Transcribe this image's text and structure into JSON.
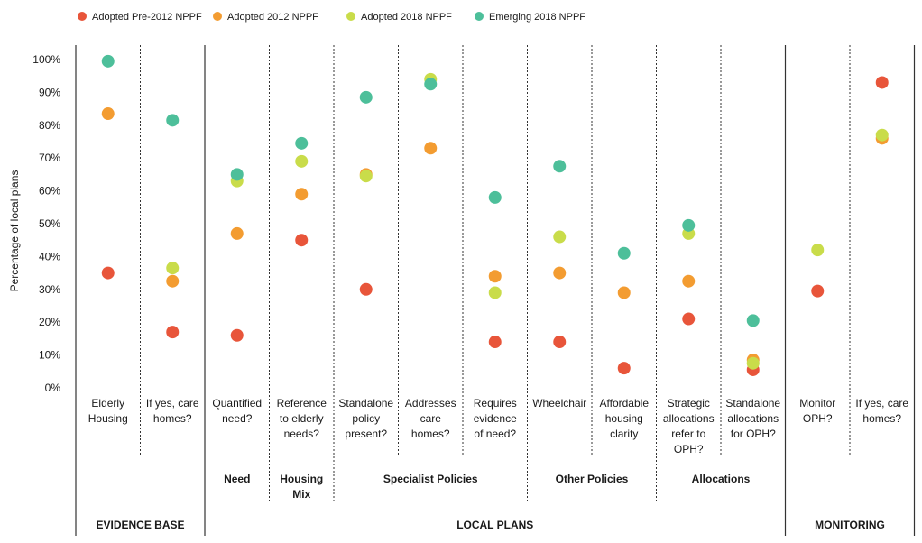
{
  "chart_data": {
    "type": "scatter",
    "title": "",
    "ylabel": "Percentage of local plans",
    "ylim": [
      0,
      100
    ],
    "yticks": [
      "0%",
      "10%",
      "20%",
      "30%",
      "40%",
      "50%",
      "60%",
      "70%",
      "80%",
      "90%",
      "100%"
    ],
    "legend_position": "top-left",
    "categories": [
      [
        "Elderly",
        "Housing"
      ],
      [
        "If yes, care",
        "homes?"
      ],
      [
        "Quantified",
        "need?"
      ],
      [
        "Reference",
        "to elderly",
        "needs?"
      ],
      [
        "Standalone",
        "policy",
        "present?"
      ],
      [
        "Addresses",
        "care",
        "homes?"
      ],
      [
        "Requires",
        "evidence",
        "of need?"
      ],
      [
        "Wheelchair"
      ],
      [
        "Affordable",
        "housing",
        "clarity"
      ],
      [
        "Strategic",
        "allocations",
        "refer to",
        "OPH?"
      ],
      [
        "Standalone",
        "allocations",
        "for OPH?"
      ],
      [
        "Monitor",
        "OPH?"
      ],
      [
        "If yes, care",
        "homes?"
      ]
    ],
    "series": [
      {
        "name": "Adopted Pre-2012 NPPF",
        "color": "#e8553a",
        "values": [
          35,
          17,
          16,
          45,
          30,
          null,
          14,
          14,
          6,
          21,
          5.5,
          29.5,
          93
        ]
      },
      {
        "name": "Adopted 2012 NPPF",
        "color": "#f39c31",
        "values": [
          83.5,
          32.5,
          47,
          59,
          65,
          73,
          34,
          35,
          29,
          32.5,
          8.5,
          null,
          76
        ]
      },
      {
        "name": "Adopted 2018 NPPF",
        "color": "#c9dc4a",
        "values": [
          null,
          36.5,
          63,
          69,
          64.5,
          94,
          29,
          46,
          null,
          47,
          7.5,
          42,
          77
        ]
      },
      {
        "name": "Emerging 2018 NPPF",
        "color": "#4dbf9a",
        "values": [
          99.5,
          81.5,
          65,
          74.5,
          88.5,
          92.5,
          58,
          67.5,
          41,
          49.5,
          20.5,
          null,
          null
        ]
      }
    ],
    "groups": [
      {
        "label": [
          "Need"
        ],
        "from": 2,
        "to": 2
      },
      {
        "label": [
          "Housing",
          "Mix"
        ],
        "from": 3,
        "to": 3
      },
      {
        "label": [
          "Specialist Policies"
        ],
        "from": 4,
        "to": 6
      },
      {
        "label": [
          "Other Policies"
        ],
        "from": 7,
        "to": 8
      },
      {
        "label": [
          "Allocations"
        ],
        "from": 9,
        "to": 10
      }
    ],
    "sections": [
      {
        "label": "EVIDENCE BASE",
        "from": 0,
        "to": 1
      },
      {
        "label": "LOCAL PLANS",
        "from": 2,
        "to": 10
      },
      {
        "label": "MONITORING",
        "from": 11,
        "to": 12
      }
    ]
  }
}
